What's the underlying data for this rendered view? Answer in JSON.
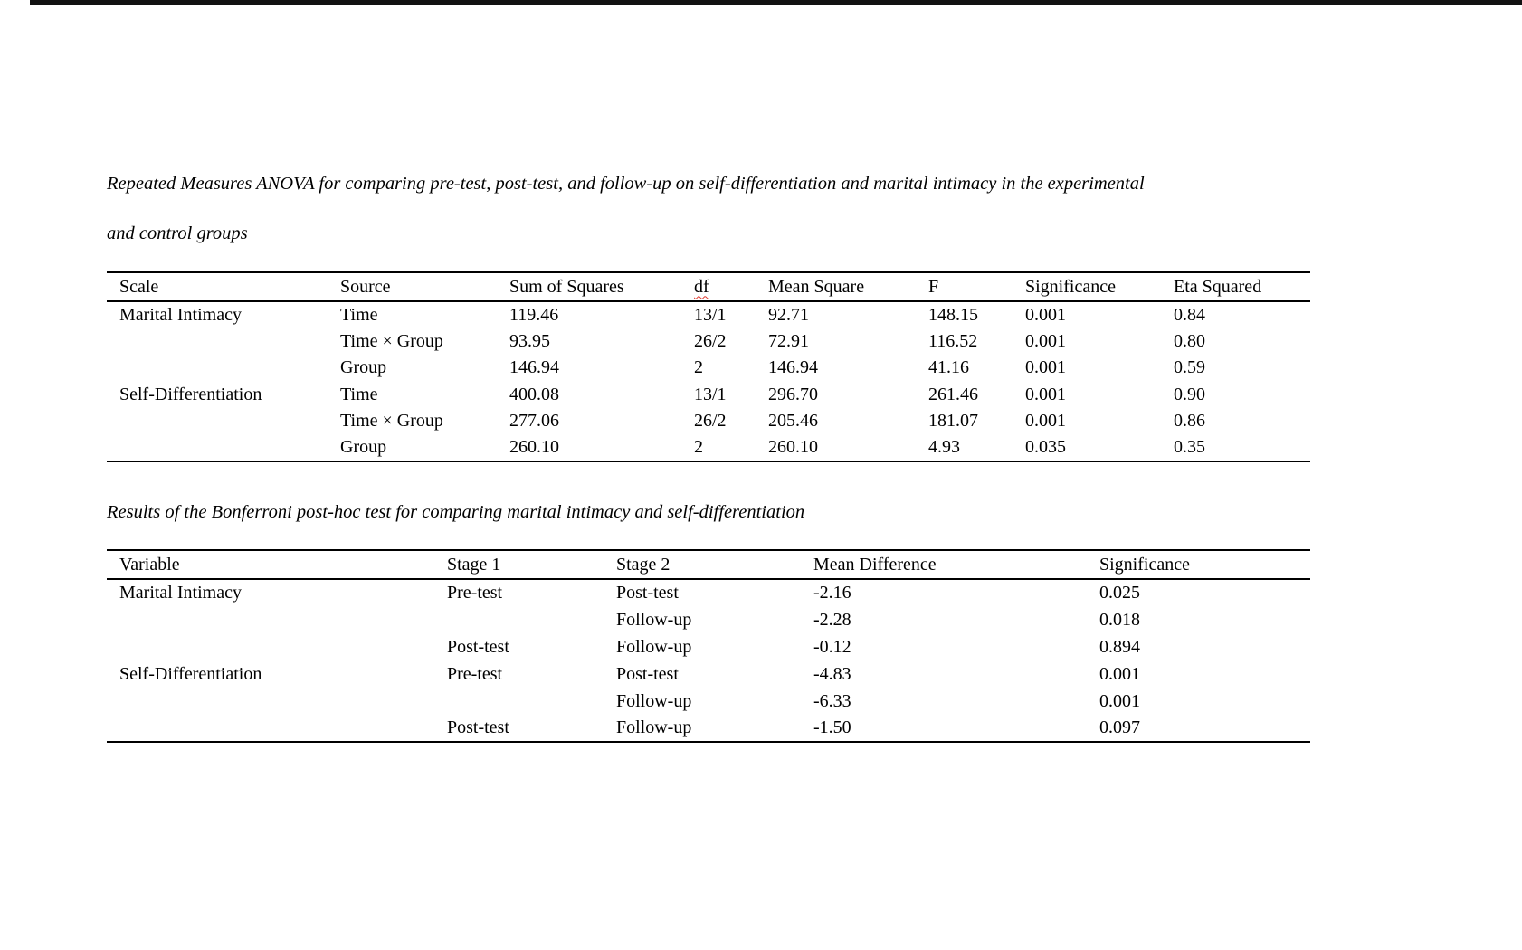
{
  "page": {
    "background_color": "#ffffff",
    "top_bar_color": "#121212",
    "spellcheck_underline_color": "#e0392f",
    "spellcheck_flagged_words": [
      "df"
    ]
  },
  "table1": {
    "caption_line1": "Repeated Measures ANOVA for comparing pre-test, post-test, and follow-up on self-differentiation and marital intimacy in the experimental",
    "caption_line2": "and control groups",
    "columns": [
      "Scale",
      "Source",
      "Sum of Squares",
      "df",
      "Mean Square",
      "F",
      "Significance",
      "Eta Squared"
    ],
    "rows": [
      [
        "Marital Intimacy",
        "Time",
        "119.46",
        "13/1",
        "92.71",
        "148.15",
        "0.001",
        "0.84"
      ],
      [
        "",
        "Time × Group",
        "93.95",
        "26/2",
        "72.91",
        "116.52",
        "0.001",
        "0.80"
      ],
      [
        "",
        "Group",
        "146.94",
        "2",
        "146.94",
        "41.16",
        "0.001",
        "0.59"
      ],
      [
        "Self-Differentiation",
        "Time",
        "400.08",
        "13/1",
        "296.70",
        "261.46",
        "0.001",
        "0.90"
      ],
      [
        "",
        "Time × Group",
        "277.06",
        "26/2",
        "205.46",
        "181.07",
        "0.001",
        "0.86"
      ],
      [
        "",
        "Group",
        "260.10",
        "2",
        "260.10",
        "4.93",
        "0.035",
        "0.35"
      ]
    ]
  },
  "table2": {
    "caption": "Results of the Bonferroni post-hoc test for comparing marital intimacy and self-differentiation",
    "columns": [
      "Variable",
      "Stage 1",
      "Stage 2",
      "Mean Difference",
      "Significance"
    ],
    "rows": [
      [
        "Marital Intimacy",
        "Pre-test",
        "Post-test",
        "-2.16",
        "0.025"
      ],
      [
        "",
        "",
        "Follow-up",
        "-2.28",
        "0.018"
      ],
      [
        "",
        "Post-test",
        "Follow-up",
        "-0.12",
        "0.894"
      ],
      [
        "Self-Differentiation",
        "Pre-test",
        "Post-test",
        "-4.83",
        "0.001"
      ],
      [
        "",
        "",
        "Follow-up",
        "-6.33",
        "0.001"
      ],
      [
        "",
        "Post-test",
        "Follow-up",
        "-1.50",
        "0.097"
      ]
    ]
  }
}
